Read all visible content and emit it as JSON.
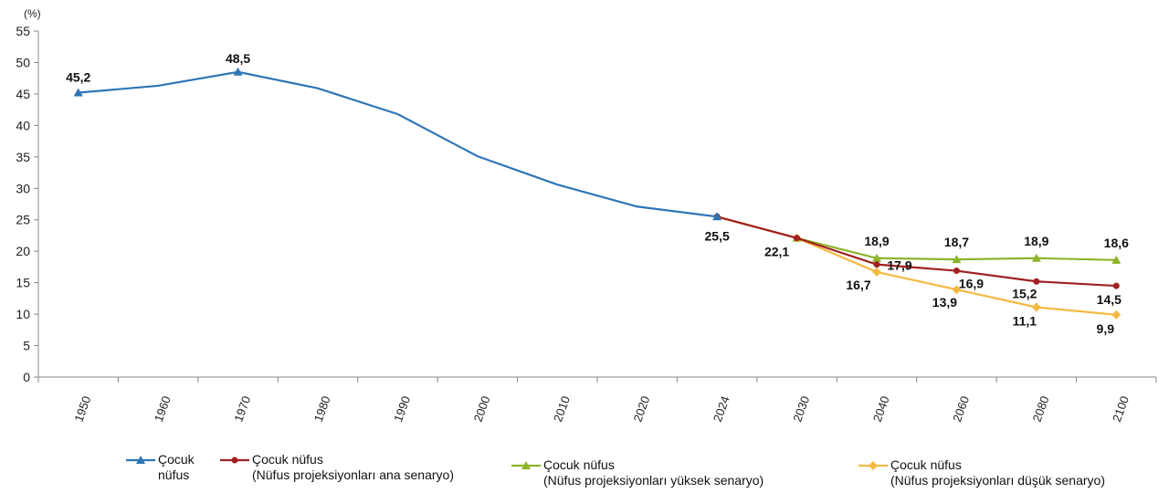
{
  "chart_data": {
    "type": "line",
    "ylabel": "(%)",
    "ylim": [
      0,
      55
    ],
    "yticks": [
      0,
      5,
      10,
      15,
      20,
      25,
      30,
      35,
      40,
      45,
      50,
      55
    ],
    "categories": [
      "1950",
      "1960",
      "1970",
      "1980",
      "1990",
      "2000",
      "2010",
      "2020",
      "2024",
      "2030",
      "2040",
      "2060",
      "2080",
      "2100"
    ],
    "grid": false,
    "legend_placement": "bottom",
    "series": [
      {
        "name": "Çocuk\nnüfus",
        "color": "#2E75B6",
        "marker": "triangle",
        "values": [
          45.2,
          46.3,
          48.5,
          45.9,
          41.8,
          35.1,
          30.6,
          27.1,
          25.5,
          null,
          null,
          null,
          null,
          null
        ],
        "labels": {
          "0": "45,2",
          "2": "48,5",
          "8": "25,5"
        }
      },
      {
        "name": "Çocuk nüfus\n(Nüfus projeksiyonları ana senaryo)",
        "color": "#A02020",
        "marker": "circle",
        "values": [
          null,
          null,
          null,
          null,
          null,
          null,
          null,
          null,
          25.5,
          22.1,
          17.9,
          16.9,
          15.2,
          14.5
        ],
        "labels": {
          "9": "22,1",
          "10": "17,9",
          "11": "16,9",
          "12": "15,2",
          "13": "14,5"
        }
      },
      {
        "name": "Çocuk nüfus\n(Nüfus projeksiyonları yüksek senaryo)",
        "color": "#8DB52A",
        "marker": "triangle",
        "values": [
          null,
          null,
          null,
          null,
          null,
          null,
          null,
          null,
          null,
          22.1,
          18.9,
          18.7,
          18.9,
          18.6
        ],
        "labels": {
          "10": "18,9",
          "11": "18,7",
          "12": "18,9",
          "13": "18,6"
        }
      },
      {
        "name": "Çocuk nüfus\n(Nüfus projeksiyonları düşük senaryo)",
        "color": "#F4B942",
        "marker": "diamond",
        "values": [
          null,
          null,
          null,
          null,
          null,
          null,
          null,
          null,
          null,
          22.1,
          16.7,
          13.9,
          11.1,
          9.9
        ],
        "labels": {
          "10": "16,7",
          "11": "13,9",
          "12": "11,1",
          "13": "9,9"
        }
      }
    ]
  }
}
